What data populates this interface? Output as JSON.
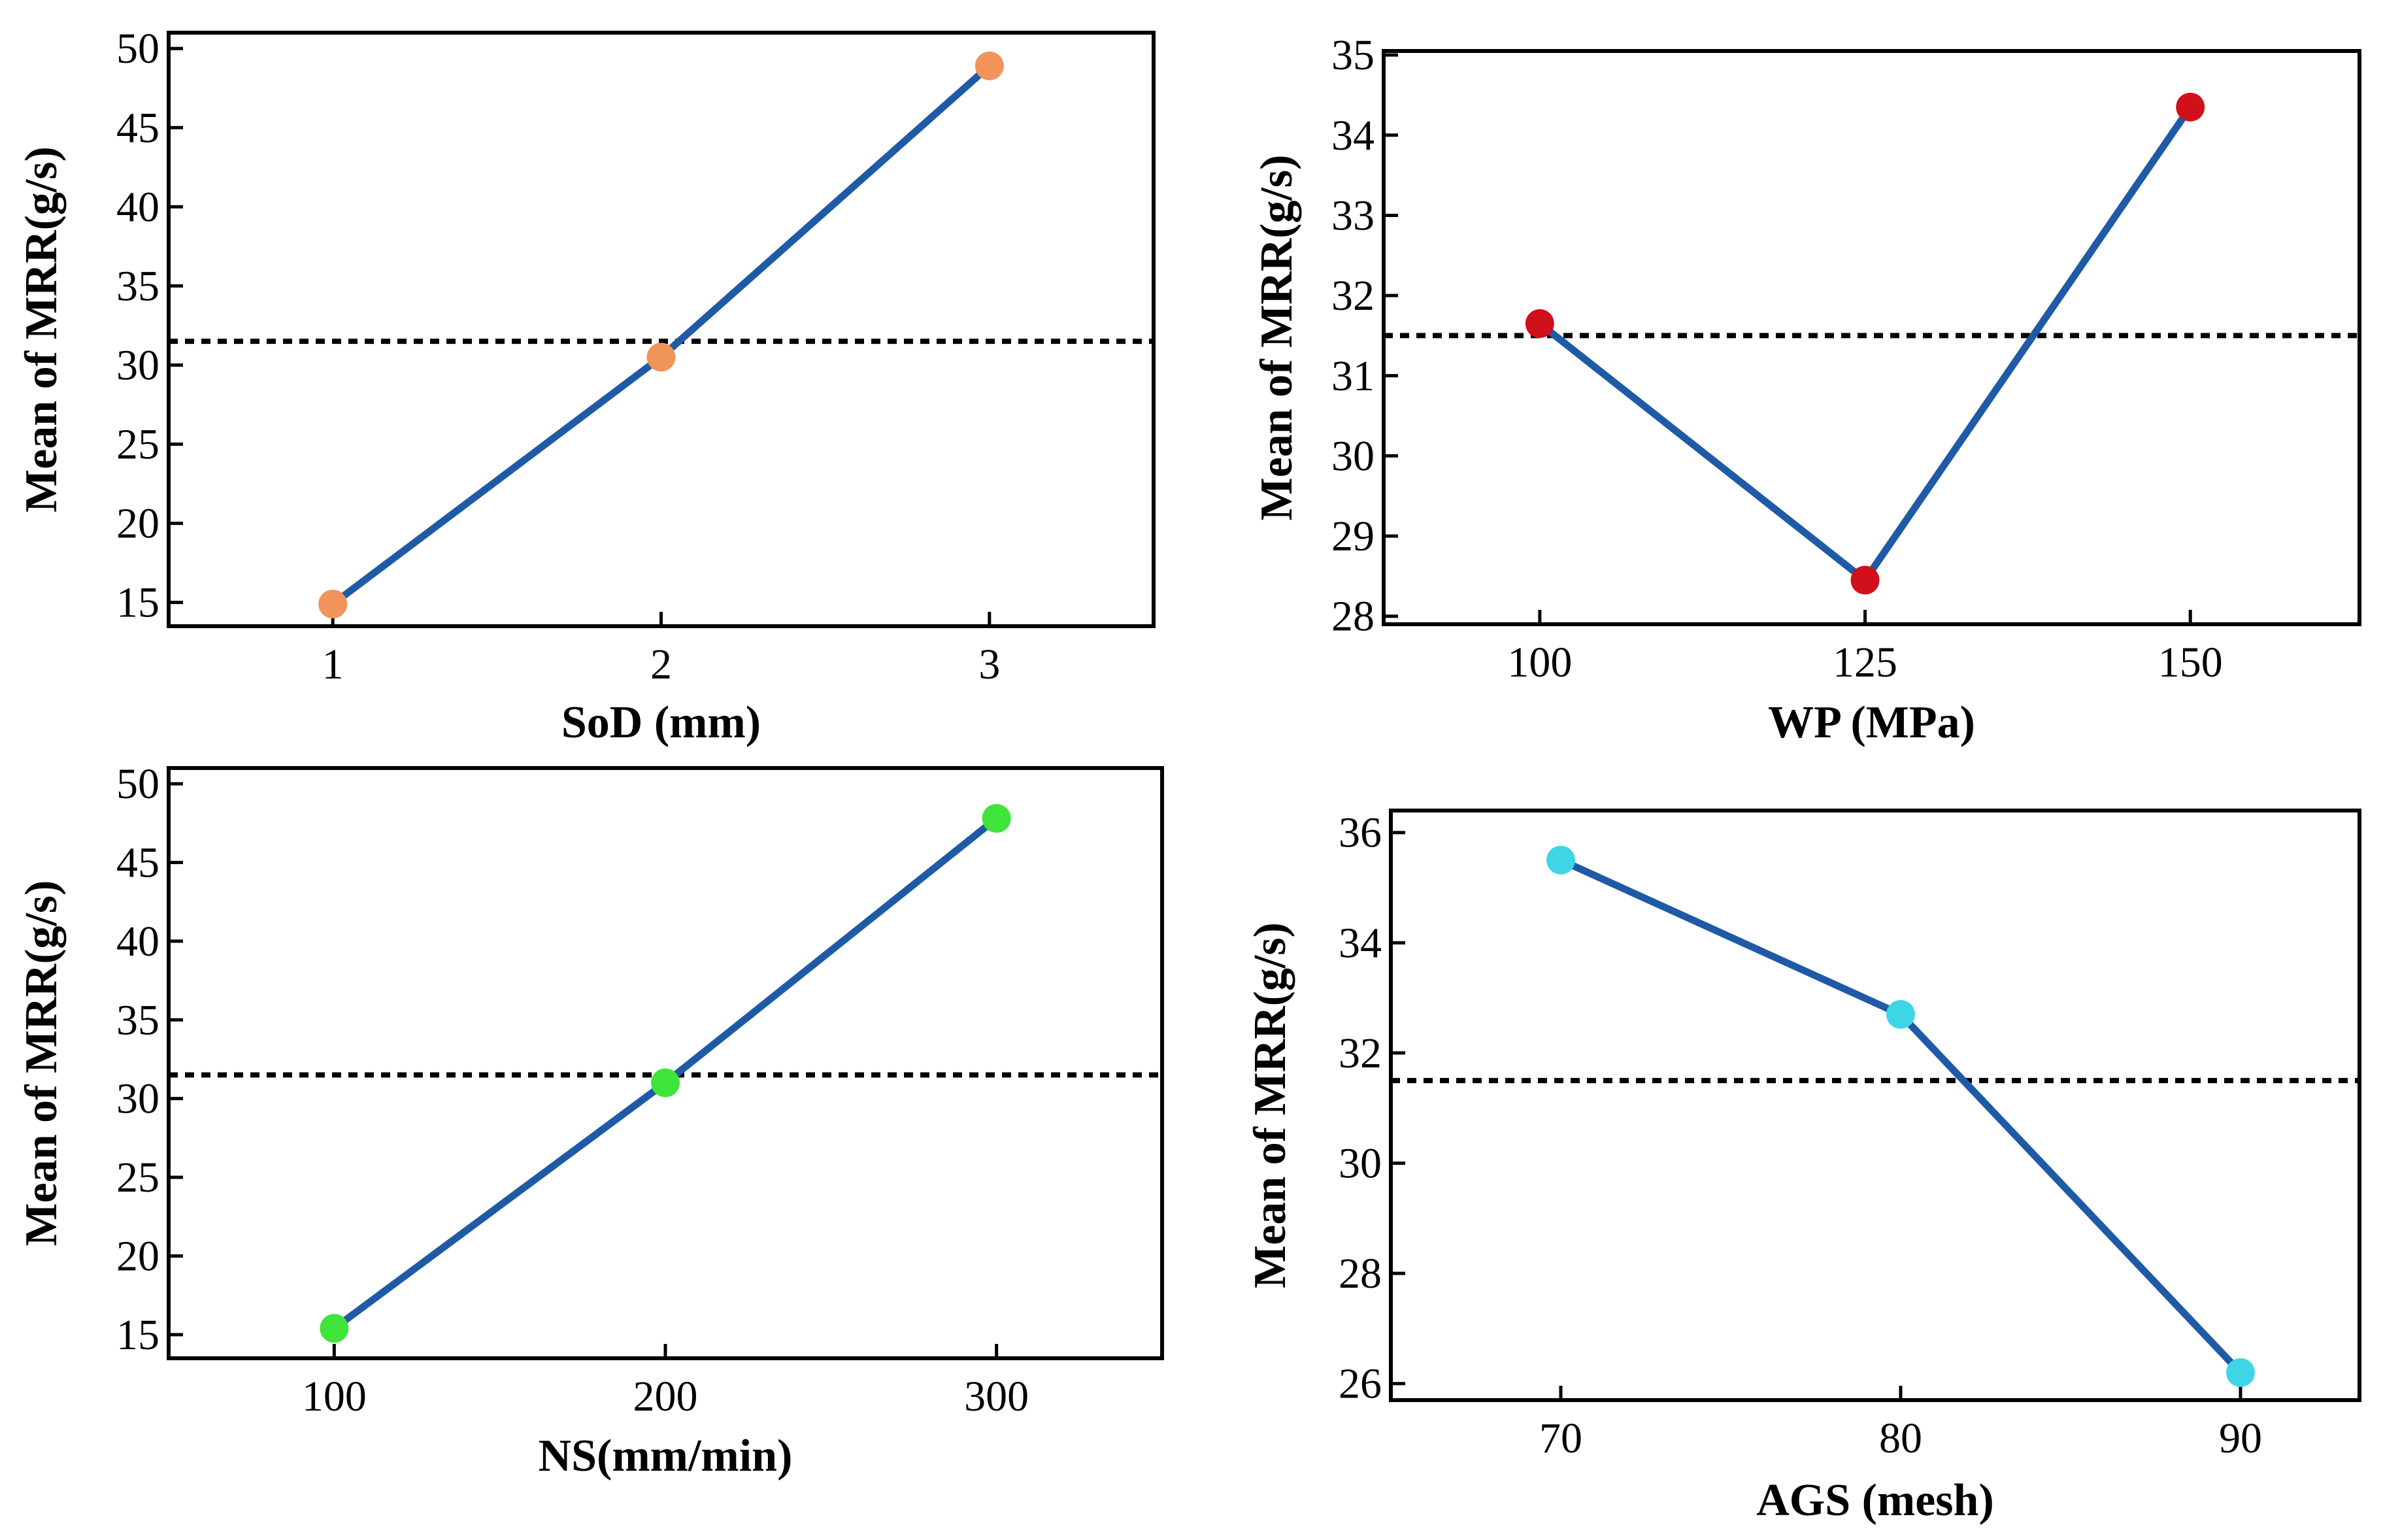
{
  "chart_data": [
    {
      "type": "line",
      "xlabel": "SoD (mm)",
      "ylabel": "Mean of MRR(g/s)",
      "x": [
        1,
        2,
        3
      ],
      "xticks": [
        1,
        2,
        3
      ],
      "xlim": [
        0.5,
        3.5
      ],
      "yticks": [
        15,
        20,
        25,
        30,
        35,
        40,
        45,
        50
      ],
      "ylim": [
        13.5,
        51
      ],
      "series": [
        {
          "values": [
            14.9,
            30.5,
            48.9
          ]
        }
      ],
      "reference_line": 31.5,
      "line_color": "#1f5aa6",
      "marker_color": "#f0945a",
      "grid": false
    },
    {
      "type": "line",
      "xlabel": "WP (MPa)",
      "ylabel": "Mean of MRR(g/s)",
      "x": [
        100,
        125,
        150
      ],
      "xticks": [
        100,
        125,
        150
      ],
      "xlim": [
        88,
        163
      ],
      "yticks": [
        28,
        29,
        30,
        31,
        32,
        33,
        34,
        35
      ],
      "ylim": [
        27.9,
        35.05
      ],
      "series": [
        {
          "values": [
            31.65,
            28.45,
            34.35
          ]
        }
      ],
      "reference_line": 31.5,
      "line_color": "#1f5aa6",
      "marker_color": "#d0101a",
      "grid": false
    },
    {
      "type": "line",
      "xlabel": "NS(mm/min)",
      "ylabel": "Mean of MRR(g/s)",
      "x": [
        100,
        200,
        300
      ],
      "xticks": [
        100,
        200,
        300
      ],
      "xlim": [
        50,
        350
      ],
      "yticks": [
        15,
        20,
        25,
        30,
        35,
        40,
        45,
        50
      ],
      "ylim": [
        13.5,
        51
      ],
      "series": [
        {
          "values": [
            15.4,
            31.0,
            47.8
          ]
        }
      ],
      "reference_line": 31.5,
      "line_color": "#1f5aa6",
      "marker_color": "#3fe43a",
      "grid": false
    },
    {
      "type": "line",
      "xlabel": "AGS (mesh)",
      "ylabel": "Mean of MRR(g/s)",
      "x": [
        70,
        80,
        90
      ],
      "xticks": [
        70,
        80,
        90
      ],
      "xlim": [
        65,
        93.5
      ],
      "yticks": [
        26,
        28,
        30,
        32,
        34,
        36
      ],
      "ylim": [
        25.7,
        36.4
      ],
      "series": [
        {
          "values": [
            35.5,
            32.7,
            26.2
          ]
        }
      ],
      "reference_line": 31.5,
      "line_color": "#1f5aa6",
      "marker_color": "#3ed6e6",
      "grid": false
    }
  ]
}
